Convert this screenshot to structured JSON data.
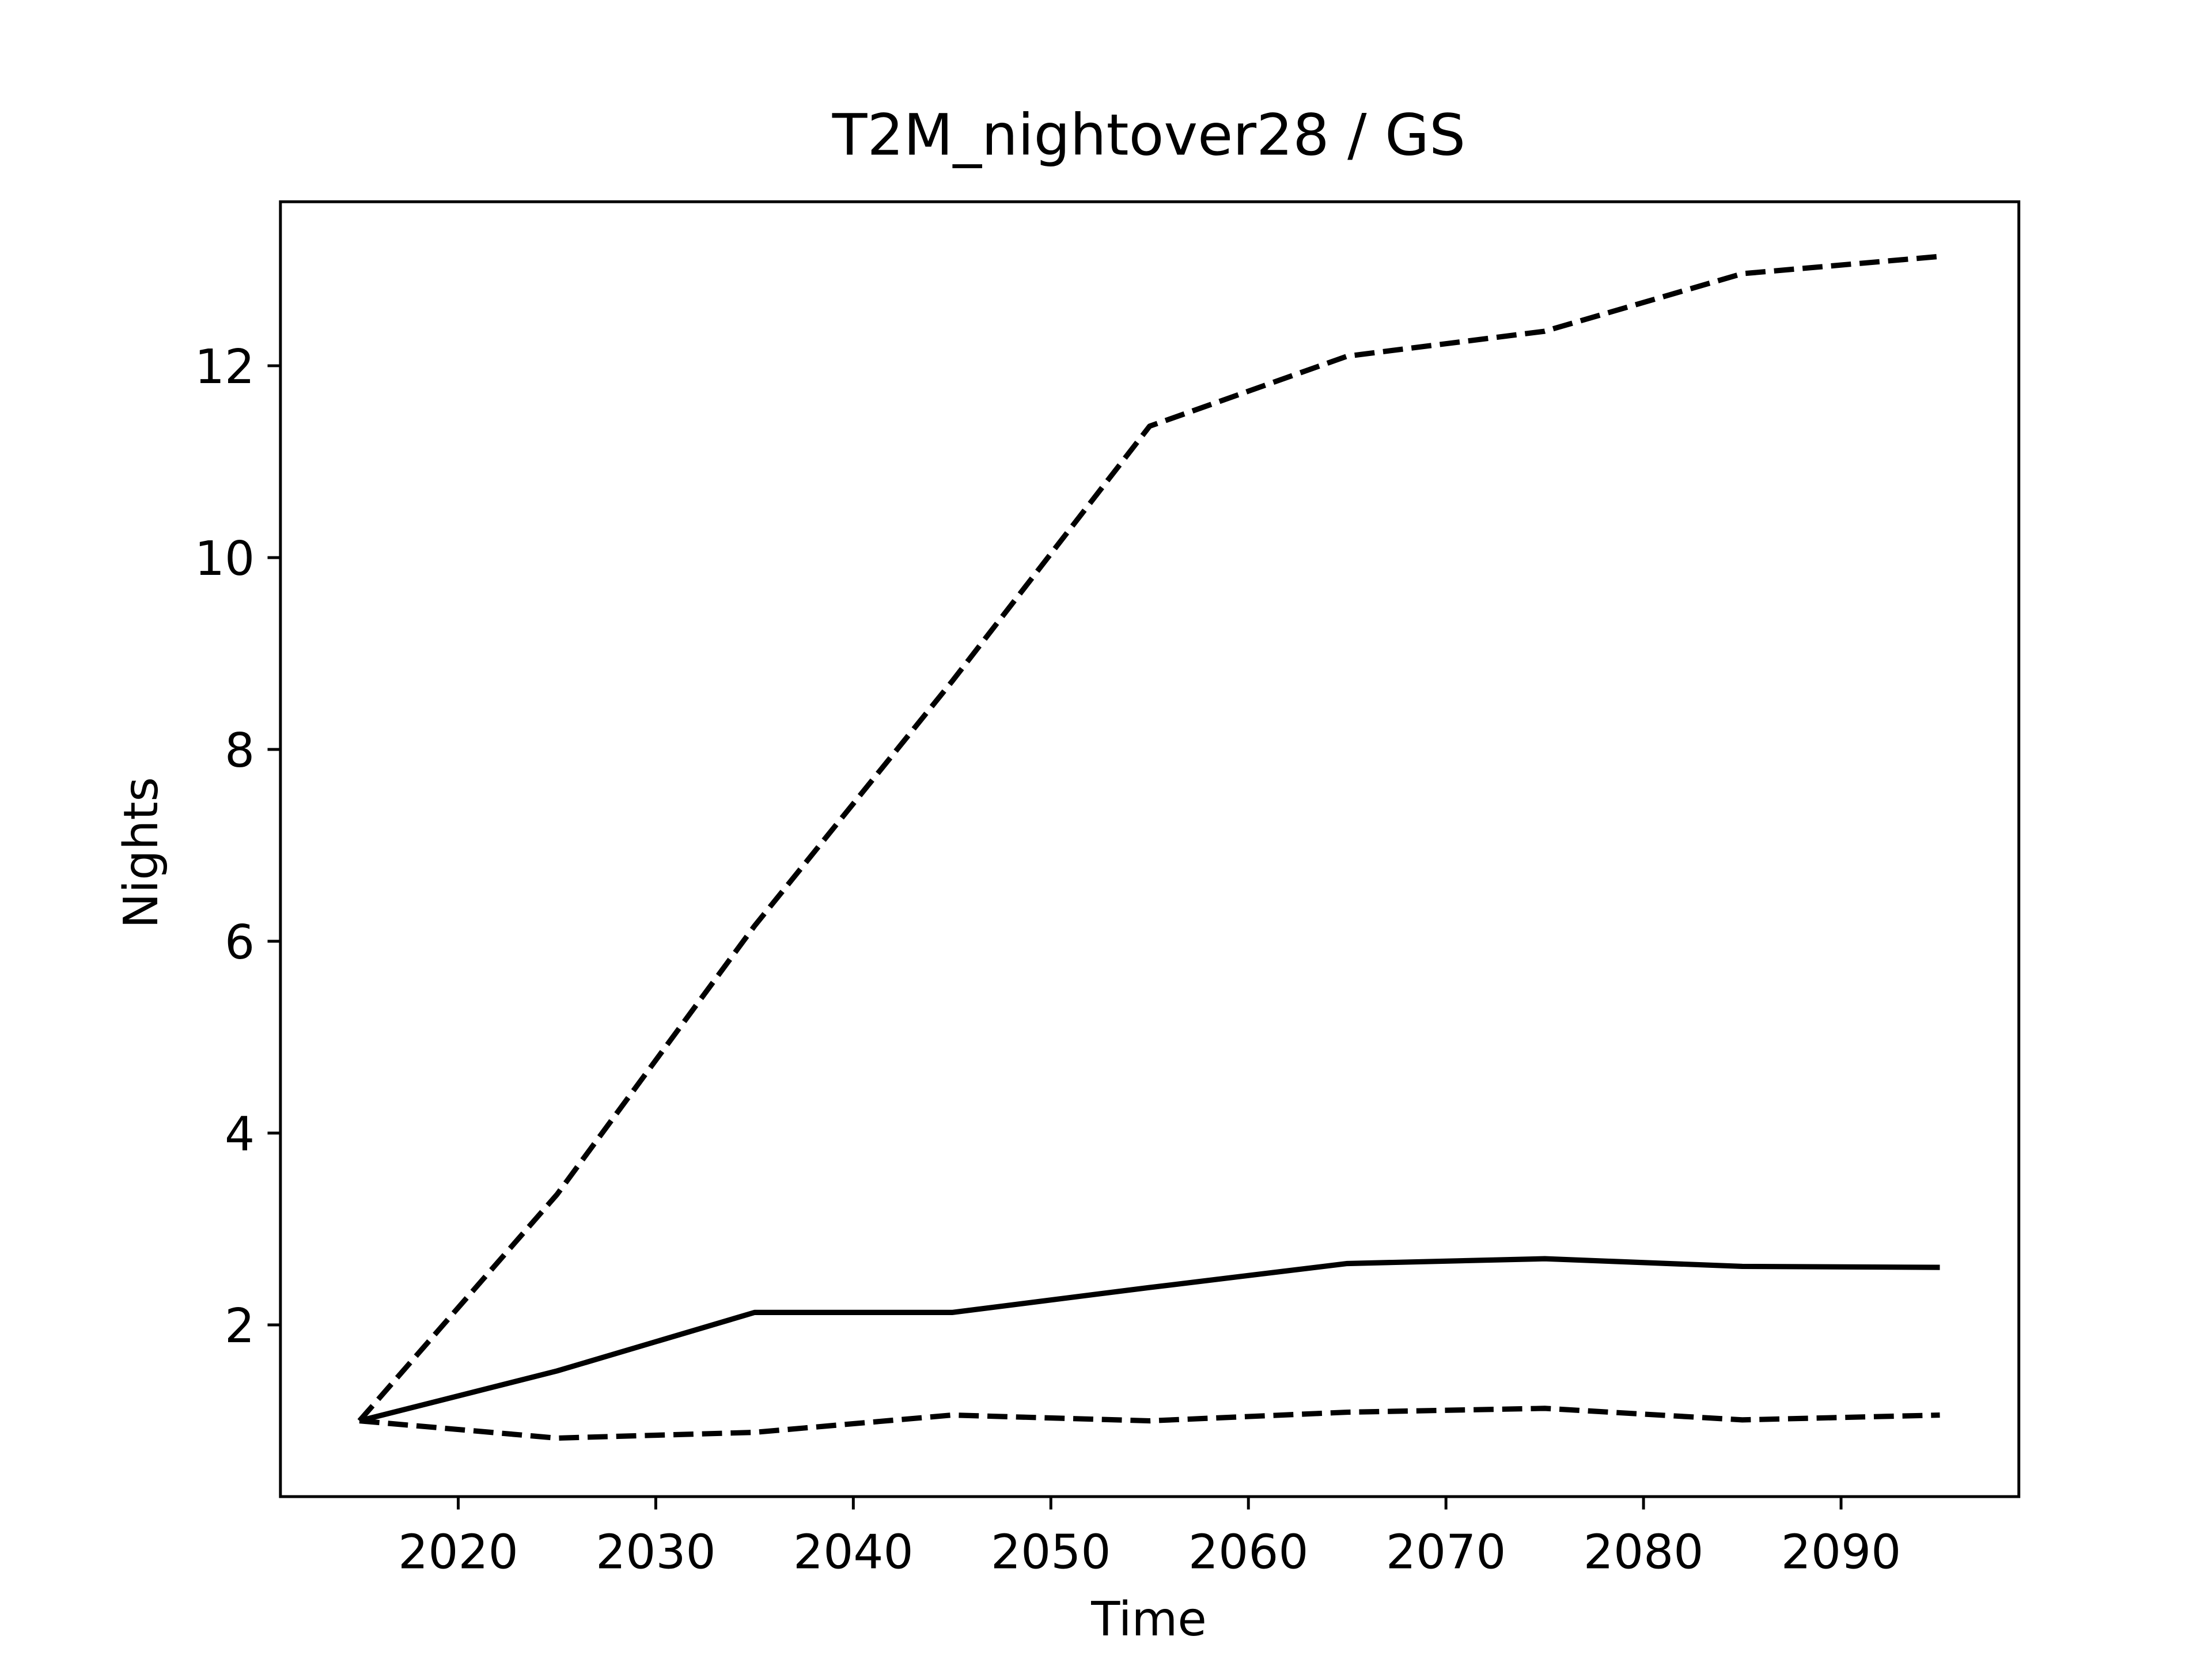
{
  "chart_data": {
    "type": "line",
    "title": "T2M_nightover28 / GS",
    "xlabel": "Time",
    "ylabel": "Nights",
    "x": [
      2015,
      2025,
      2035,
      2045,
      2055,
      2065,
      2075,
      2085,
      2095
    ],
    "series": [
      {
        "color": "#000000",
        "linestyle": "solid",
        "values": [
          1.0,
          1.52,
          2.13,
          2.13,
          2.39,
          2.64,
          2.69,
          2.61,
          2.6
        ]
      },
      {
        "color": "#000000",
        "linestyle": "dashed",
        "values": [
          1.0,
          3.36,
          6.16,
          8.71,
          11.37,
          12.1,
          12.36,
          12.96,
          13.14
        ]
      },
      {
        "color": "#000000",
        "linestyle": "dashed",
        "values": [
          1.0,
          0.82,
          0.88,
          1.06,
          1.0,
          1.09,
          1.13,
          1.01,
          1.06
        ]
      }
    ],
    "xlim": [
      2011,
      2099
    ],
    "xticks": [
      2020,
      2030,
      2040,
      2050,
      2060,
      2070,
      2080,
      2090
    ],
    "ylim": [
      0.21,
      13.71
    ],
    "yticks": [
      2,
      4,
      6,
      8,
      10,
      12
    ],
    "grid": false
  }
}
